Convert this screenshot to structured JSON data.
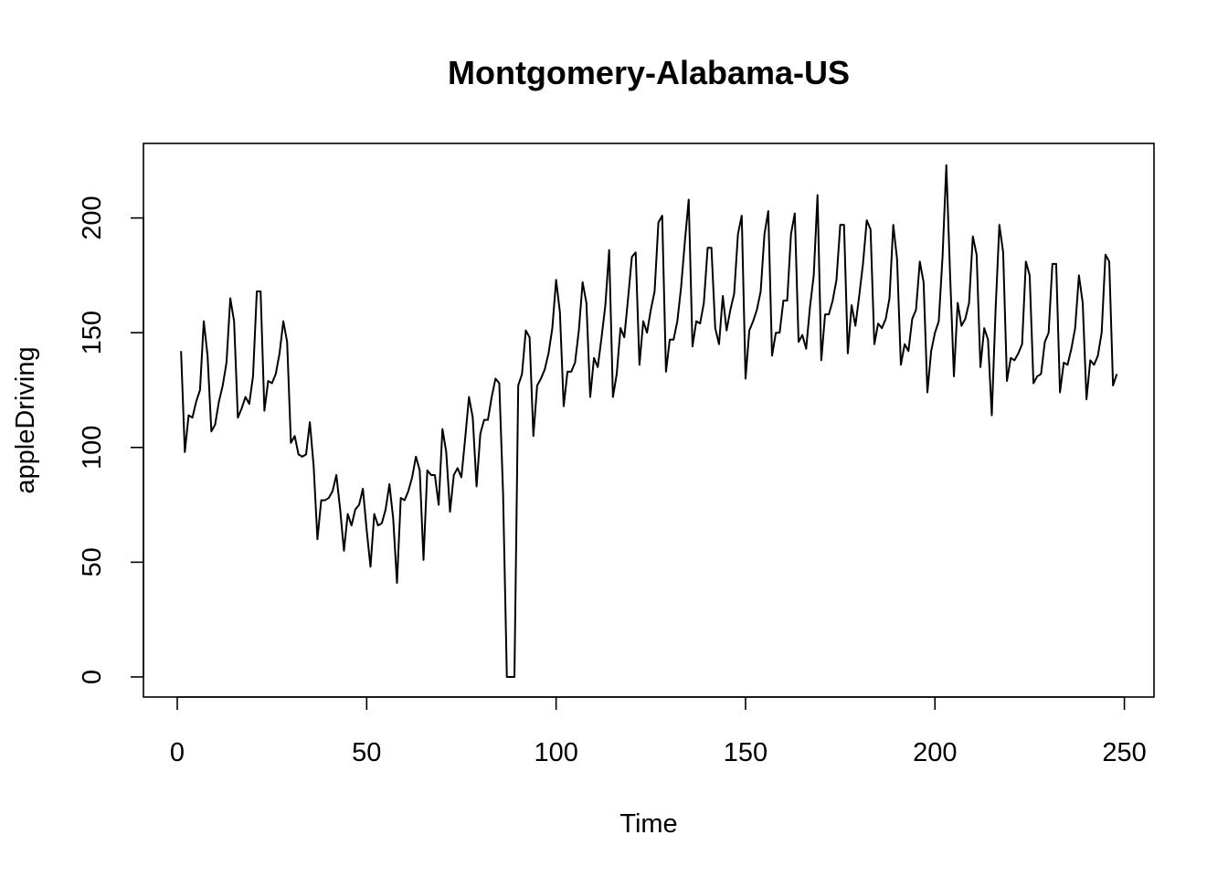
{
  "chart_data": {
    "type": "line",
    "title": "Montgomery-Alabama-US",
    "xlabel": "Time",
    "ylabel": "appleDriving",
    "xlim": [
      1,
      248
    ],
    "ylim": [
      0,
      223
    ],
    "x_ticks": [
      0,
      50,
      100,
      150,
      200,
      250
    ],
    "y_ticks": [
      0,
      50,
      100,
      150,
      200
    ],
    "grid": false,
    "series": [
      {
        "values": [
          142,
          98,
          114,
          113,
          120,
          125,
          155,
          140,
          107,
          110,
          120,
          127,
          137,
          165,
          155,
          113,
          117,
          122,
          119,
          131,
          168,
          168,
          116,
          129,
          128,
          132,
          141,
          155,
          146,
          102,
          105,
          97,
          96,
          97,
          111,
          92,
          60,
          77,
          77,
          78,
          81,
          88,
          73,
          55,
          71,
          66,
          73,
          75,
          82,
          64,
          48,
          71,
          66,
          67,
          73,
          84,
          69,
          41,
          78,
          77,
          81,
          87,
          96,
          90,
          51,
          90,
          88,
          88,
          75,
          108,
          98,
          72,
          88,
          91,
          87,
          104,
          122,
          113,
          83,
          106,
          112,
          112,
          122,
          130,
          128,
          80,
          0,
          0,
          0,
          127,
          132,
          151,
          148,
          105,
          127,
          130,
          134,
          141,
          152,
          173,
          159,
          118,
          133,
          133,
          137,
          151,
          172,
          163,
          122,
          139,
          135,
          148,
          162,
          186,
          122,
          132,
          152,
          148,
          165,
          183,
          185,
          136,
          155,
          150,
          160,
          168,
          198,
          201,
          133,
          147,
          147,
          155,
          170,
          190,
          208,
          144,
          155,
          154,
          163,
          187,
          187,
          152,
          145,
          166,
          151,
          160,
          167,
          193,
          201,
          130,
          151,
          155,
          160,
          168,
          193,
          203,
          140,
          150,
          150,
          164,
          164,
          193,
          202,
          146,
          149,
          143,
          161,
          175,
          210,
          138,
          158,
          158,
          164,
          173,
          197,
          197,
          141,
          162,
          153,
          166,
          180,
          199,
          195,
          145,
          154,
          152,
          156,
          165,
          197,
          182,
          136,
          145,
          142,
          156,
          160,
          181,
          172,
          124,
          142,
          150,
          155,
          183,
          223,
          175,
          131,
          163,
          153,
          156,
          163,
          192,
          184,
          135,
          152,
          147,
          114,
          160,
          197,
          185,
          129,
          139,
          138,
          141,
          145,
          181,
          175,
          128,
          131,
          132,
          146,
          150,
          180,
          180,
          124,
          137,
          136,
          143,
          152,
          175,
          163,
          121,
          138,
          136,
          140,
          150,
          184,
          181,
          127,
          132
        ]
      }
    ]
  }
}
